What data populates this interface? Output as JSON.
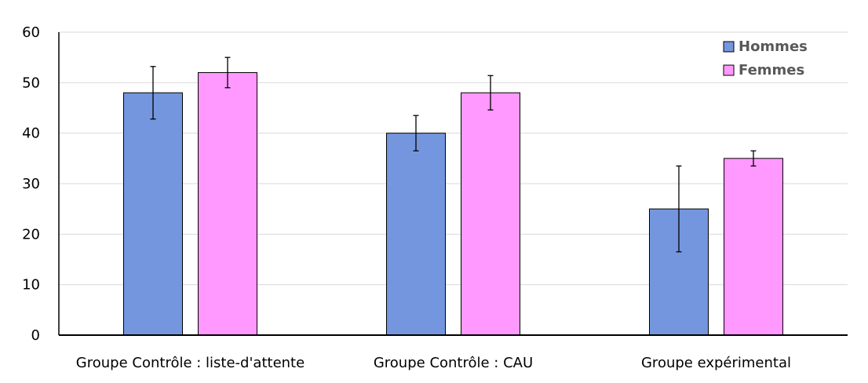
{
  "chart_data": {
    "type": "bar",
    "categories": [
      "Groupe Contrôle : liste-d'attente",
      "Groupe Contrôle : CAU",
      "Groupe expérimental"
    ],
    "series": [
      {
        "name": "Hommes",
        "values": [
          48,
          40,
          25
        ],
        "error": [
          5.2,
          3.5,
          8.5
        ],
        "color": "#7496DE"
      },
      {
        "name": "Femmes",
        "values": [
          52,
          48,
          35
        ],
        "error": [
          3.0,
          3.4,
          1.5
        ],
        "color": "#FF99FF"
      }
    ],
    "yticks": [
      0,
      10,
      20,
      30,
      40,
      50,
      60
    ],
    "ylim": [
      0,
      60
    ],
    "grid": true,
    "legend_position": "top-right"
  }
}
